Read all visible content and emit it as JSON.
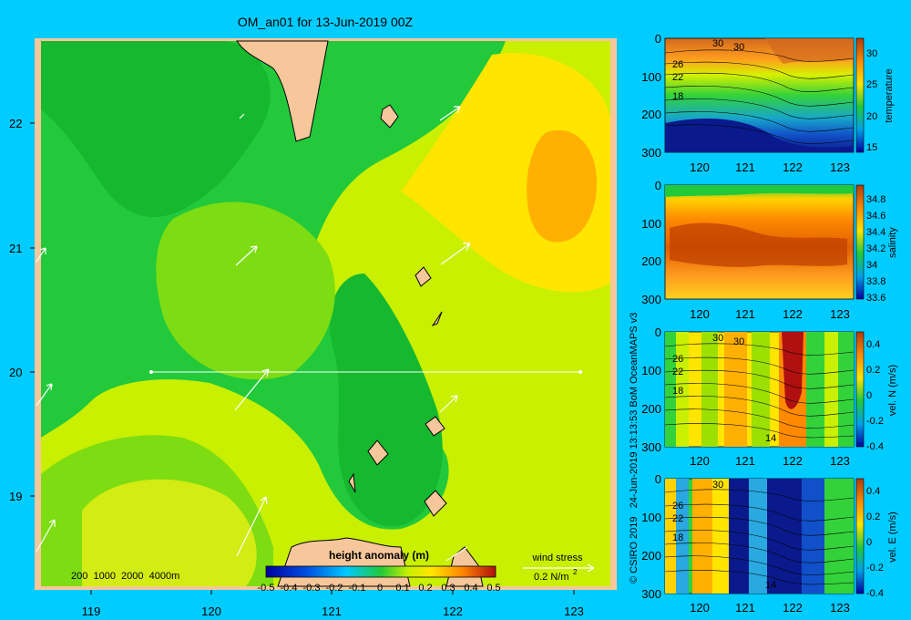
{
  "title": "OM_an01 for 13-Jun-2019 00Z",
  "credit": "© CSIRO 2019   24-Jun-2019 13:13:53 BoM OceanMAPS v3",
  "colors": {
    "background": "#00ccff",
    "land": "#f6c79a",
    "vector": "#ffffff"
  },
  "map": {
    "x_ticks": [
      "119",
      "120",
      "121",
      "122",
      "123"
    ],
    "y_ticks": [
      "22",
      "21",
      "20",
      "19"
    ],
    "depth_labels": "200  1000  2000  4000m",
    "wind_label": "wind stress",
    "wind_scale": "0.2 N/m",
    "wind_scale_exp": "2"
  },
  "colorbar": {
    "title": "height anomaly (m)",
    "ticks": [
      "-0.5",
      "-0.4",
      "-0.3",
      "-0.2",
      "-0.1",
      "0",
      "0.1",
      "0.2",
      "0.3",
      "0.4",
      "0.5"
    ]
  },
  "chart_data": [
    {
      "type": "heatmap",
      "title": "OM_an01 for 13-Jun-2019 00Z",
      "quantity": "height anomaly (m)",
      "xlim": [
        118.5,
        123.5
      ],
      "ylim": [
        18.3,
        22.7
      ],
      "clim": [
        -0.5,
        0.5
      ],
      "approx_field_range": [
        0.05,
        0.3
      ]
    },
    {
      "type": "heatmap",
      "ylabel": "temperature",
      "y_ticks": [
        "0",
        "100",
        "200",
        "300"
      ],
      "x_ticks": [
        "120",
        "121",
        "122",
        "123"
      ],
      "cbar_ticks": [
        "30",
        "25",
        "20",
        "15"
      ],
      "contour_labels": [
        "30",
        "30",
        "26",
        "22",
        "18"
      ]
    },
    {
      "type": "heatmap",
      "ylabel": "salinity",
      "y_ticks": [
        "0",
        "100",
        "200",
        "300"
      ],
      "x_ticks": [
        "120",
        "121",
        "122",
        "123"
      ],
      "cbar_ticks": [
        "34.8",
        "34.6",
        "34.4",
        "34.2",
        "34",
        "33.8",
        "33.6"
      ]
    },
    {
      "type": "heatmap",
      "ylabel": "vel. N (m/s)",
      "y_ticks": [
        "0",
        "100",
        "200",
        "300"
      ],
      "x_ticks": [
        "120",
        "121",
        "122",
        "123"
      ],
      "cbar_ticks": [
        "0.4",
        "0.2",
        "0",
        "-0.2",
        "-0.4"
      ],
      "contour_labels": [
        "30",
        "30",
        "26",
        "22",
        "18",
        "14"
      ]
    },
    {
      "type": "heatmap",
      "ylabel": "vel. E (m/s)",
      "y_ticks": [
        "0",
        "100",
        "200",
        "300"
      ],
      "x_ticks": [
        "120",
        "121",
        "122",
        "123"
      ],
      "cbar_ticks": [
        "0.4",
        "0.2",
        "0",
        "-0.2",
        "-0.4"
      ],
      "contour_labels": [
        "30",
        "26",
        "22",
        "18",
        "14"
      ]
    }
  ]
}
